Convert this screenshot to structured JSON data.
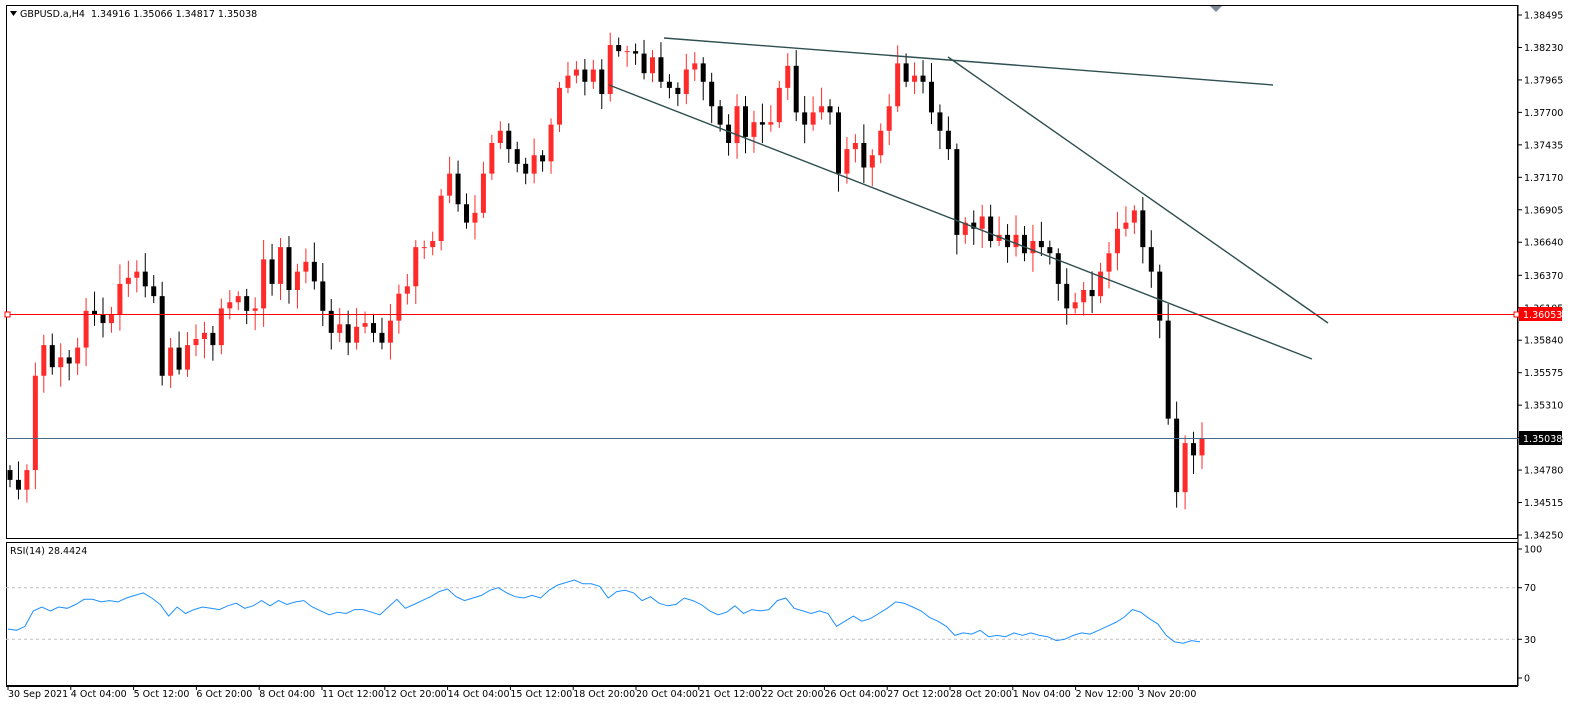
{
  "header": {
    "symbol_line": "GBPUSD.a,H4  1.34916 1.35066 1.34817 1.35038",
    "rsi_line": "RSI(14) 28.4424"
  },
  "colors": {
    "bull": "#ff2a2a",
    "bear": "#000000",
    "trendline": "#2f4f4f",
    "hline_red": "#ff0000",
    "hline_blue": "#4a6a8a",
    "rsi": "#1e90ff",
    "rsi_level": "#c0c0c0"
  },
  "chart_data": [
    {
      "type": "candlestick",
      "title": "GBPUSD.a,H4",
      "ylim": [
        1.3425,
        1.38495
      ],
      "y_ticks": [
        "1.38495",
        "1.38230",
        "1.37965",
        "1.37700",
        "1.37435",
        "1.37170",
        "1.36905",
        "1.36640",
        "1.36370",
        "1.36105",
        "1.35840",
        "1.35575",
        "1.35310",
        "1.35045",
        "1.34780",
        "1.34515",
        "1.34250"
      ],
      "x_labels": [
        "30 Sep 2021",
        "4 Oct 04:00",
        "5 Oct 12:00",
        "6 Oct 20:00",
        "8 Oct 04:00",
        "11 Oct 12:00",
        "12 Oct 20:00",
        "14 Oct 04:00",
        "15 Oct 12:00",
        "18 Oct 20:00",
        "20 Oct 04:00",
        "21 Oct 12:00",
        "22 Oct 20:00",
        "26 Oct 04:00",
        "27 Oct 12:00",
        "28 Oct 20:00",
        "1 Nov 04:00",
        "2 Nov 12:00",
        "3 Nov 20:00"
      ],
      "closes": [
        1.347,
        1.3462,
        1.3478,
        1.3555,
        1.358,
        1.3562,
        1.357,
        1.3565,
        1.3578,
        1.3608,
        1.3605,
        1.3598,
        1.3605,
        1.363,
        1.3635,
        1.364,
        1.3628,
        1.362,
        1.3555,
        1.3578,
        1.356,
        1.358,
        1.3585,
        1.359,
        1.358,
        1.361,
        1.3615,
        1.362,
        1.3608,
        1.361,
        1.365,
        1.363,
        1.366,
        1.3625,
        1.364,
        1.3648,
        1.3632,
        1.3608,
        1.359,
        1.3597,
        1.3582,
        1.3595,
        1.3598,
        1.359,
        1.3582,
        1.36,
        1.3622,
        1.3628,
        1.366,
        1.366,
        1.3665,
        1.3702,
        1.372,
        1.3695,
        1.368,
        1.3688,
        1.372,
        1.3745,
        1.3755,
        1.374,
        1.3728,
        1.372,
        1.3735,
        1.373,
        1.376,
        1.379,
        1.38,
        1.3805,
        1.3795,
        1.3805,
        1.3785,
        1.3825,
        1.382,
        1.382,
        1.3818,
        1.3802,
        1.3815,
        1.3795,
        1.379,
        1.3785,
        1.3805,
        1.381,
        1.3795,
        1.3775,
        1.376,
        1.3745,
        1.3775,
        1.375,
        1.3762,
        1.376,
        1.3762,
        1.379,
        1.3808,
        1.377,
        1.376,
        1.377,
        1.3775,
        1.377,
        1.372,
        1.374,
        1.3745,
        1.3725,
        1.3735,
        1.3755,
        1.3775,
        1.381,
        1.3795,
        1.38,
        1.3795,
        1.377,
        1.3755,
        1.374,
        1.367,
        1.368,
        1.3675,
        1.3685,
        1.3665,
        1.367,
        1.366,
        1.367,
        1.3655,
        1.3665,
        1.366,
        1.3655,
        1.363,
        1.361,
        1.3615,
        1.3625,
        1.362,
        1.364,
        1.3655,
        1.3675,
        1.368,
        1.369,
        1.366,
        1.364,
        1.36,
        1.352,
        1.346,
        1.35,
        1.349,
        1.35038
      ],
      "opens_from_prev_close": true,
      "notes": "Closes read approximately from the plotted candles."
    },
    {
      "type": "line",
      "title": "RSI(14)",
      "ylim": [
        0,
        100
      ],
      "y_ticks": [
        "100",
        "70",
        "30",
        "0"
      ],
      "levels": [
        70,
        30
      ],
      "series": [
        {
          "values": [
            38,
            37,
            40,
            52,
            55,
            52,
            55,
            54,
            57,
            61,
            61,
            59,
            60,
            59,
            62,
            64,
            66,
            62,
            57,
            48,
            55,
            50,
            53,
            55,
            54,
            53,
            56,
            58,
            54,
            56,
            60,
            56,
            60,
            57,
            59,
            60,
            55,
            52,
            49,
            51,
            50,
            53,
            53,
            51,
            49,
            55,
            61,
            54,
            57,
            60,
            63,
            67,
            69,
            63,
            60,
            62,
            64,
            68,
            70,
            66,
            63,
            62,
            64,
            62,
            68,
            72,
            74,
            76,
            73,
            73,
            71,
            62,
            67,
            68,
            66,
            60,
            63,
            58,
            56,
            57,
            62,
            60,
            57,
            52,
            49,
            51,
            56,
            50,
            53,
            52,
            53,
            60,
            62,
            54,
            52,
            50,
            52,
            50,
            40,
            44,
            48,
            44,
            46,
            50,
            54,
            59,
            58,
            55,
            52,
            47,
            44,
            40,
            33,
            35,
            34,
            37,
            32,
            33,
            32,
            35,
            33,
            35,
            33,
            32,
            29,
            30,
            33,
            35,
            34,
            37,
            40,
            43,
            47,
            53,
            51,
            46,
            42,
            33,
            28,
            27,
            29,
            28
          ]
        }
      ]
    }
  ],
  "price_markers": {
    "red_level": "1.36053",
    "current_price": "1.35038"
  }
}
